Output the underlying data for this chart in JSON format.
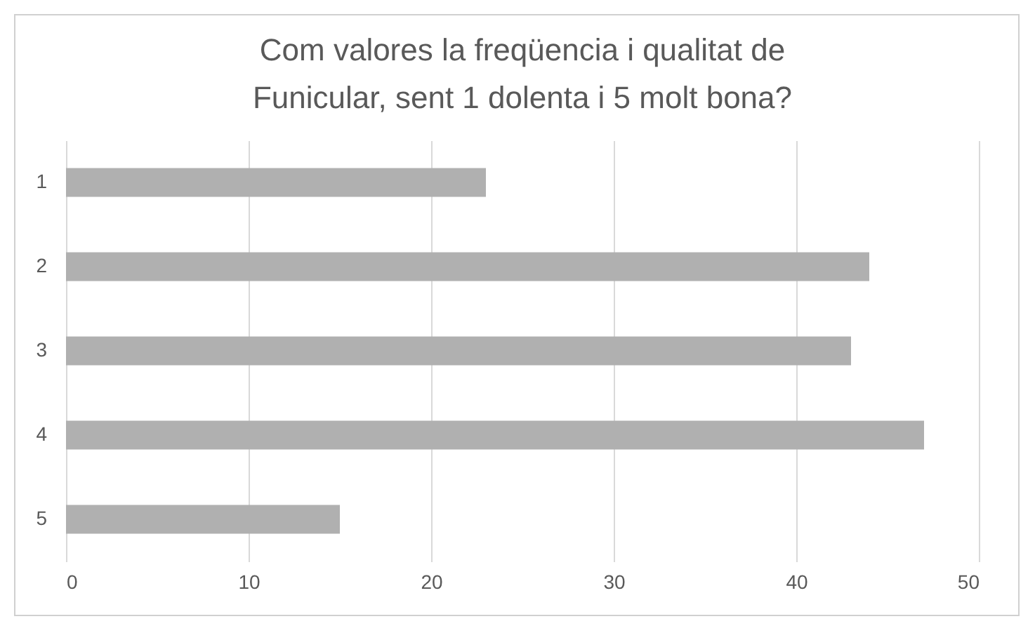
{
  "chart_data": {
    "type": "bar",
    "orientation": "horizontal",
    "title": "Com valores la freqüencia i qualitat de\nFunicular, sent 1 dolenta i 5 molt bona?",
    "categories": [
      "1",
      "2",
      "3",
      "4",
      "5"
    ],
    "values": [
      23,
      44,
      43,
      47,
      15
    ],
    "color": "#b0b0b0",
    "xlim": [
      0,
      50
    ],
    "xticks": [
      0,
      10,
      20,
      30,
      40,
      50
    ],
    "grid": "x"
  }
}
